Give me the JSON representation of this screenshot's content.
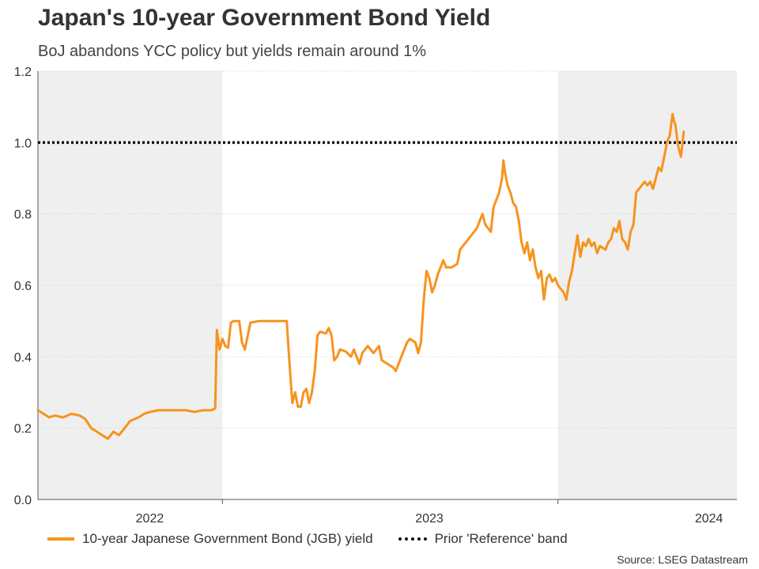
{
  "chart_data": {
    "type": "line",
    "title": "Japan's 10-year Government Bond Yield",
    "subtitle": "BoJ abandons YCC policy but yields remain around 1%",
    "xlabel": "",
    "ylabel": "",
    "ylim": [
      0,
      1.2
    ],
    "yticks": [
      "0.0",
      "0.2",
      "0.4",
      "0.6",
      "0.8",
      "1.0",
      "1.2"
    ],
    "ytick_values": [
      0,
      0.2,
      0.4,
      0.6,
      0.8,
      1.0,
      1.2
    ],
    "xlim": [
      2021.9,
      2024.4
    ],
    "xtick_labels": [
      {
        "label": "2022",
        "x": 2022.3
      },
      {
        "label": "2023",
        "x": 2023.3
      },
      {
        "label": "2024",
        "x": 2024.3
      }
    ],
    "shaded_periods": [
      {
        "start": 2021.9,
        "end": 2022.56
      },
      {
        "start": 2023.76,
        "end": 2024.4
      }
    ],
    "reference_line": {
      "name": "Prior 'Reference' band",
      "value": 1.0
    },
    "series": [
      {
        "name": "10-year Japanese Government Bond (JGB) yield",
        "color": "#f7931e",
        "points": [
          [
            2021.9,
            0.25
          ],
          [
            2021.92,
            0.24
          ],
          [
            2021.94,
            0.23
          ],
          [
            2021.96,
            0.235
          ],
          [
            2021.99,
            0.23
          ],
          [
            2022.02,
            0.24
          ],
          [
            2022.05,
            0.235
          ],
          [
            2022.07,
            0.225
          ],
          [
            2022.09,
            0.2
          ],
          [
            2022.11,
            0.19
          ],
          [
            2022.13,
            0.18
          ],
          [
            2022.15,
            0.17
          ],
          [
            2022.17,
            0.19
          ],
          [
            2022.19,
            0.18
          ],
          [
            2022.21,
            0.2
          ],
          [
            2022.23,
            0.22
          ],
          [
            2022.26,
            0.23
          ],
          [
            2022.28,
            0.24
          ],
          [
            2022.3,
            0.245
          ],
          [
            2022.33,
            0.25
          ],
          [
            2022.37,
            0.25
          ],
          [
            2022.4,
            0.25
          ],
          [
            2022.43,
            0.25
          ],
          [
            2022.46,
            0.245
          ],
          [
            2022.49,
            0.25
          ],
          [
            2022.52,
            0.25
          ],
          [
            2022.534,
            0.255
          ],
          [
            2022.54,
            0.475
          ],
          [
            2022.55,
            0.42
          ],
          [
            2022.56,
            0.45
          ],
          [
            2022.57,
            0.43
          ],
          [
            2022.58,
            0.425
          ],
          [
            2022.59,
            0.495
          ],
          [
            2022.6,
            0.5
          ],
          [
            2022.62,
            0.5
          ],
          [
            2022.63,
            0.44
          ],
          [
            2022.64,
            0.42
          ],
          [
            2022.66,
            0.495
          ],
          [
            2022.69,
            0.5
          ],
          [
            2022.72,
            0.5
          ],
          [
            2022.75,
            0.5
          ],
          [
            2022.77,
            0.5
          ],
          [
            2022.79,
            0.5
          ],
          [
            2022.8,
            0.38
          ],
          [
            2022.81,
            0.27
          ],
          [
            2022.82,
            0.3
          ],
          [
            2022.83,
            0.26
          ],
          [
            2022.84,
            0.26
          ],
          [
            2022.85,
            0.3
          ],
          [
            2022.86,
            0.31
          ],
          [
            2022.87,
            0.27
          ],
          [
            2022.88,
            0.3
          ],
          [
            2022.89,
            0.36
          ],
          [
            2022.9,
            0.46
          ],
          [
            2022.91,
            0.47
          ],
          [
            2022.93,
            0.465
          ],
          [
            2022.94,
            0.48
          ],
          [
            2022.95,
            0.46
          ],
          [
            2022.96,
            0.39
          ],
          [
            2022.97,
            0.4
          ],
          [
            2022.98,
            0.42
          ],
          [
            2023.0,
            0.415
          ],
          [
            2023.02,
            0.4
          ],
          [
            2023.03,
            0.42
          ],
          [
            2023.05,
            0.38
          ],
          [
            2023.06,
            0.41
          ],
          [
            2023.08,
            0.43
          ],
          [
            2023.1,
            0.41
          ],
          [
            2023.12,
            0.43
          ],
          [
            2023.13,
            0.39
          ],
          [
            2023.15,
            0.38
          ],
          [
            2023.17,
            0.37
          ],
          [
            2023.18,
            0.36
          ],
          [
            2023.2,
            0.4
          ],
          [
            2023.22,
            0.44
          ],
          [
            2023.23,
            0.45
          ],
          [
            2023.25,
            0.44
          ],
          [
            2023.26,
            0.41
          ],
          [
            2023.27,
            0.44
          ],
          [
            2023.28,
            0.56
          ],
          [
            2023.29,
            0.64
          ],
          [
            2023.3,
            0.62
          ],
          [
            2023.31,
            0.58
          ],
          [
            2023.32,
            0.6
          ],
          [
            2023.33,
            0.63
          ],
          [
            2023.35,
            0.67
          ],
          [
            2023.36,
            0.65
          ],
          [
            2023.38,
            0.65
          ],
          [
            2023.4,
            0.66
          ],
          [
            2023.41,
            0.7
          ],
          [
            2023.43,
            0.72
          ],
          [
            2023.45,
            0.74
          ],
          [
            2023.47,
            0.76
          ],
          [
            2023.48,
            0.78
          ],
          [
            2023.49,
            0.8
          ],
          [
            2023.5,
            0.77
          ],
          [
            2023.52,
            0.75
          ],
          [
            2023.53,
            0.82
          ],
          [
            2023.54,
            0.84
          ],
          [
            2023.55,
            0.86
          ],
          [
            2023.56,
            0.9
          ],
          [
            2023.565,
            0.95
          ],
          [
            2023.57,
            0.92
          ],
          [
            2023.58,
            0.88
          ],
          [
            2023.59,
            0.86
          ],
          [
            2023.6,
            0.83
          ],
          [
            2023.61,
            0.82
          ],
          [
            2023.62,
            0.78
          ],
          [
            2023.63,
            0.72
          ],
          [
            2023.64,
            0.69
          ],
          [
            2023.65,
            0.72
          ],
          [
            2023.66,
            0.67
          ],
          [
            2023.67,
            0.7
          ],
          [
            2023.68,
            0.65
          ],
          [
            2023.69,
            0.62
          ],
          [
            2023.7,
            0.64
          ],
          [
            2023.71,
            0.56
          ],
          [
            2023.72,
            0.62
          ],
          [
            2023.73,
            0.63
          ],
          [
            2023.74,
            0.61
          ],
          [
            2023.75,
            0.62
          ],
          [
            2023.76,
            0.6
          ],
          [
            2023.77,
            0.59
          ],
          [
            2023.78,
            0.58
          ],
          [
            2023.79,
            0.56
          ],
          [
            2023.8,
            0.61
          ],
          [
            2023.81,
            0.64
          ],
          [
            2023.82,
            0.69
          ],
          [
            2023.83,
            0.74
          ],
          [
            2023.84,
            0.68
          ],
          [
            2023.85,
            0.72
          ],
          [
            2023.86,
            0.71
          ],
          [
            2023.87,
            0.73
          ],
          [
            2023.88,
            0.71
          ],
          [
            2023.89,
            0.72
          ],
          [
            2023.9,
            0.69
          ],
          [
            2023.91,
            0.71
          ],
          [
            2023.93,
            0.7
          ],
          [
            2023.94,
            0.72
          ],
          [
            2023.95,
            0.73
          ],
          [
            2023.96,
            0.76
          ],
          [
            2023.97,
            0.75
          ],
          [
            2023.98,
            0.78
          ],
          [
            2023.99,
            0.73
          ],
          [
            2024.0,
            0.72
          ],
          [
            2024.01,
            0.7
          ],
          [
            2024.02,
            0.75
          ],
          [
            2024.03,
            0.77
          ],
          [
            2024.04,
            0.86
          ],
          [
            2024.05,
            0.87
          ],
          [
            2024.06,
            0.88
          ],
          [
            2024.07,
            0.89
          ],
          [
            2024.08,
            0.88
          ],
          [
            2024.09,
            0.89
          ],
          [
            2024.1,
            0.87
          ],
          [
            2024.11,
            0.9
          ],
          [
            2024.12,
            0.93
          ],
          [
            2024.13,
            0.92
          ],
          [
            2024.14,
            0.96
          ],
          [
            2024.15,
            1.0
          ],
          [
            2024.16,
            1.02
          ],
          [
            2024.17,
            1.08
          ],
          [
            2024.175,
            1.06
          ],
          [
            2024.18,
            1.05
          ],
          [
            2024.19,
            0.99
          ],
          [
            2024.2,
            0.96
          ],
          [
            2024.21,
            1.03
          ]
        ]
      }
    ],
    "legend_position": "bottom",
    "source": "Source: LSEG Datastream"
  },
  "legend": {
    "series_label": "10-year Japanese Government Bond (JGB) yield",
    "reference_label": "Prior 'Reference' band"
  },
  "colors": {
    "line": "#f7931e",
    "shade": "#efefef",
    "reference": "#111111"
  }
}
